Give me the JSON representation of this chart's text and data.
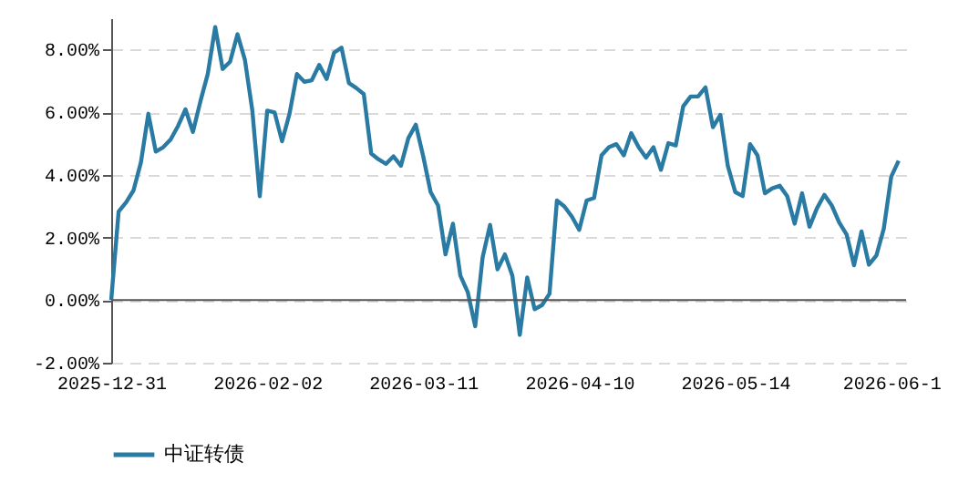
{
  "chart_data": {
    "type": "line",
    "categories": [
      "2025-12-31",
      null,
      null,
      null,
      null,
      null,
      null,
      null,
      null,
      null,
      null,
      null,
      null,
      null,
      null,
      null,
      null,
      null,
      null,
      null,
      null,
      "2026-02-02",
      null,
      null,
      null,
      null,
      null,
      null,
      null,
      null,
      null,
      null,
      null,
      null,
      null,
      null,
      null,
      null,
      null,
      null,
      null,
      null,
      "2026-03-11",
      null,
      null,
      null,
      null,
      null,
      null,
      null,
      null,
      null,
      null,
      null,
      null,
      null,
      null,
      null,
      null,
      null,
      null,
      null,
      null,
      "2026-04-10",
      null,
      null,
      null,
      null,
      null,
      null,
      null,
      null,
      null,
      null,
      null,
      null,
      null,
      null,
      null,
      null,
      null,
      null,
      null,
      null,
      "2026-05-14",
      null,
      null,
      null,
      null,
      null,
      null,
      null,
      null,
      null,
      null,
      null,
      null,
      null,
      null,
      null,
      null,
      null,
      null,
      null,
      null,
      "2026-06-1",
      null
    ],
    "series": [
      {
        "name": "中证转债",
        "color": "#2a7ba3",
        "values": [
          0,
          2.83,
          3.12,
          3.5,
          4.4,
          5.95,
          4.74,
          4.88,
          5.13,
          5.56,
          6.09,
          5.37,
          6.34,
          7.22,
          8.72,
          7.38,
          7.61,
          8.49,
          7.67,
          6.05,
          3.32,
          6.05,
          5.99,
          5.07,
          5.95,
          7.22,
          6.97,
          7.02,
          7.51,
          7.06,
          7.9,
          8.06,
          6.93,
          6.77,
          6.58,
          4.68,
          4.49,
          4.35,
          4.59,
          4.29,
          5.17,
          5.6,
          4.59,
          3.45,
          3.02,
          1.46,
          2.44,
          0.78,
          0.25,
          -0.84,
          1.37,
          2.4,
          0.98,
          1.46,
          0.78,
          -1.11,
          0.72,
          -0.29,
          -0.16,
          0.2,
          3.18,
          2.99,
          2.67,
          2.24,
          3.18,
          3.26,
          4.62,
          4.88,
          4.98,
          4.62,
          5.33,
          4.88,
          4.55,
          4.88,
          4.16,
          5.01,
          4.94,
          6.19,
          6.5,
          6.5,
          6.79,
          5.52,
          5.91,
          4.29,
          3.45,
          3.32,
          4.98,
          4.62,
          3.41,
          3.57,
          3.65,
          3.32,
          2.44,
          3.41,
          2.34,
          2.93,
          3.36,
          3.02,
          2.48,
          2.09,
          1.11,
          2.19,
          1.13,
          1.42,
          2.28,
          3.94,
          4.45
        ]
      }
    ],
    "ylim": [
      -2,
      9
    ],
    "yticks": [
      {
        "value": -2,
        "label": "-2.00%"
      },
      {
        "value": 0,
        "label": "0.00%"
      },
      {
        "value": 2,
        "label": "2.00%"
      },
      {
        "value": 4,
        "label": "4.00%"
      },
      {
        "value": 6,
        "label": "6.00%"
      },
      {
        "value": 8,
        "label": "8.00%"
      }
    ],
    "grid": "y",
    "legend": "bottom",
    "marker": "none",
    "line_style": "solid"
  }
}
